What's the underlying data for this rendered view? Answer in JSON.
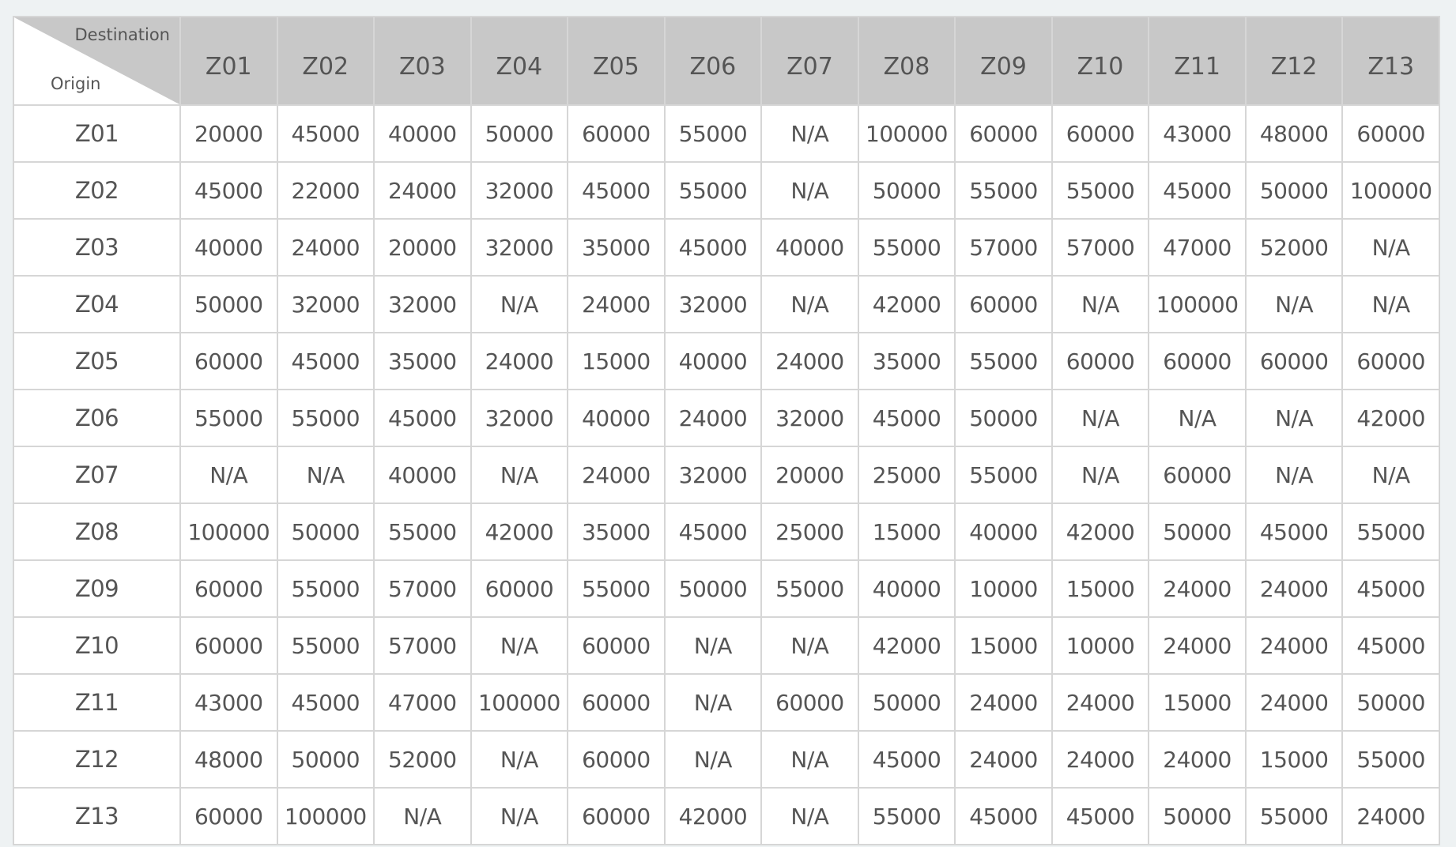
{
  "corner": {
    "destination_label": "Destination",
    "origin_label": "Origin"
  },
  "columns": [
    "Z01",
    "Z02",
    "Z03",
    "Z04",
    "Z05",
    "Z06",
    "Z07",
    "Z08",
    "Z09",
    "Z10",
    "Z11",
    "Z12",
    "Z13"
  ],
  "rows": [
    {
      "origin": "Z01",
      "values": [
        "20000",
        "45000",
        "40000",
        "50000",
        "60000",
        "55000",
        "N/A",
        "100000",
        "60000",
        "60000",
        "43000",
        "48000",
        "60000"
      ]
    },
    {
      "origin": "Z02",
      "values": [
        "45000",
        "22000",
        "24000",
        "32000",
        "45000",
        "55000",
        "N/A",
        "50000",
        "55000",
        "55000",
        "45000",
        "50000",
        "100000"
      ]
    },
    {
      "origin": "Z03",
      "values": [
        "40000",
        "24000",
        "20000",
        "32000",
        "35000",
        "45000",
        "40000",
        "55000",
        "57000",
        "57000",
        "47000",
        "52000",
        "N/A"
      ]
    },
    {
      "origin": "Z04",
      "values": [
        "50000",
        "32000",
        "32000",
        "N/A",
        "24000",
        "32000",
        "N/A",
        "42000",
        "60000",
        "N/A",
        "100000",
        "N/A",
        "N/A"
      ]
    },
    {
      "origin": "Z05",
      "values": [
        "60000",
        "45000",
        "35000",
        "24000",
        "15000",
        "40000",
        "24000",
        "35000",
        "55000",
        "60000",
        "60000",
        "60000",
        "60000"
      ]
    },
    {
      "origin": "Z06",
      "values": [
        "55000",
        "55000",
        "45000",
        "32000",
        "40000",
        "24000",
        "32000",
        "45000",
        "50000",
        "N/A",
        "N/A",
        "N/A",
        "42000"
      ]
    },
    {
      "origin": "Z07",
      "values": [
        "N/A",
        "N/A",
        "40000",
        "N/A",
        "24000",
        "32000",
        "20000",
        "25000",
        "55000",
        "N/A",
        "60000",
        "N/A",
        "N/A"
      ]
    },
    {
      "origin": "Z08",
      "values": [
        "100000",
        "50000",
        "55000",
        "42000",
        "35000",
        "45000",
        "25000",
        "15000",
        "40000",
        "42000",
        "50000",
        "45000",
        "55000"
      ]
    },
    {
      "origin": "Z09",
      "values": [
        "60000",
        "55000",
        "57000",
        "60000",
        "55000",
        "50000",
        "55000",
        "40000",
        "10000",
        "15000",
        "24000",
        "24000",
        "45000"
      ]
    },
    {
      "origin": "Z10",
      "values": [
        "60000",
        "55000",
        "57000",
        "N/A",
        "60000",
        "N/A",
        "N/A",
        "42000",
        "15000",
        "10000",
        "24000",
        "24000",
        "45000"
      ]
    },
    {
      "origin": "Z11",
      "values": [
        "43000",
        "45000",
        "47000",
        "100000",
        "60000",
        "N/A",
        "60000",
        "50000",
        "24000",
        "24000",
        "15000",
        "24000",
        "50000"
      ]
    },
    {
      "origin": "Z12",
      "values": [
        "48000",
        "50000",
        "52000",
        "N/A",
        "60000",
        "N/A",
        "N/A",
        "45000",
        "24000",
        "24000",
        "24000",
        "15000",
        "55000"
      ]
    },
    {
      "origin": "Z13",
      "values": [
        "60000",
        "100000",
        "N/A",
        "N/A",
        "60000",
        "42000",
        "N/A",
        "55000",
        "45000",
        "45000",
        "50000",
        "55000",
        "24000"
      ]
    }
  ],
  "colors": {
    "header_bg": "#c8c8c8",
    "border": "#d6d6d6",
    "text": "#555555",
    "page_bg": "#eef2f3"
  }
}
